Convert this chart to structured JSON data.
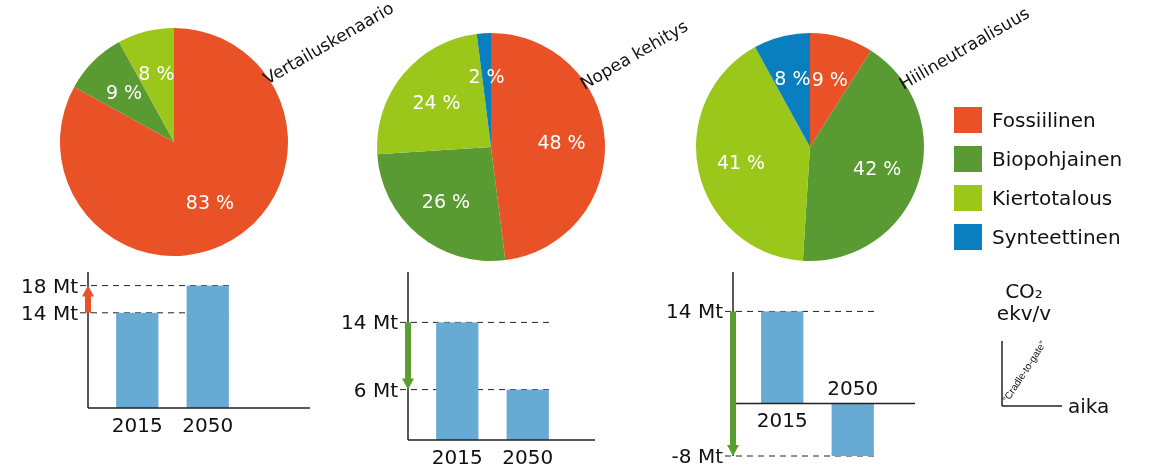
{
  "chart_data": [
    {
      "type": "pie",
      "title": "Vertailuskenaario",
      "categories": [
        null,
        null,
        null
      ],
      "values": [
        83,
        9,
        8
      ],
      "colors": [
        "#e95226",
        "#5a9a32",
        "#9bc61a"
      ],
      "value_labels": [
        "83 %",
        "9 %",
        "8 %"
      ]
    },
    {
      "type": "pie",
      "title": "Nopea kehitys",
      "categories": [
        null,
        null,
        null,
        null
      ],
      "values": [
        48,
        26,
        24,
        2
      ],
      "colors": [
        "#e95226",
        "#5a9a32",
        "#9bc61a",
        "#0a7fbf"
      ],
      "value_labels": [
        "48 %",
        "26 %",
        "24 %",
        "2 %"
      ]
    },
    {
      "type": "pie",
      "title": "Hiilineutraalisuus",
      "categories": [
        "Fossiilinen",
        "Biopohjainen",
        "Kiertotalous",
        "Synteettinen"
      ],
      "values": [
        9,
        42,
        41,
        8
      ],
      "colors": [
        "#e95226",
        "#5a9a32",
        "#9bc61a",
        "#0a7fbf"
      ],
      "value_labels": [
        "9 %",
        "42 %",
        "41 %",
        "8 %"
      ],
      "legend": "right"
    },
    {
      "type": "bar",
      "categories": [
        "2015",
        "2050"
      ],
      "values": [
        14,
        18
      ],
      "color": "#67aad4",
      "ylim": [
        0,
        20
      ],
      "yticks": [
        {
          "value": 14,
          "label": "14 Mt"
        },
        {
          "value": 18,
          "label": "18 Mt"
        }
      ],
      "grid": "y"
    },
    {
      "type": "bar",
      "categories": [
        "2015",
        "2050"
      ],
      "values": [
        14,
        6
      ],
      "color": "#67aad4",
      "ylim": [
        0,
        20
      ],
      "yticks": [
        {
          "value": 6,
          "label": "6 Mt"
        },
        {
          "value": 14,
          "label": "14 Mt"
        }
      ],
      "grid": "y"
    },
    {
      "type": "bar",
      "categories": [
        "2015",
        "2050"
      ],
      "values": [
        14,
        -8
      ],
      "color": "#67aad4",
      "ylim": [
        -8,
        20
      ],
      "yticks": [
        {
          "value": -8,
          "label": "-8 Mt"
        },
        {
          "value": 14,
          "label": "14 Mt"
        }
      ],
      "grid": "y"
    },
    {
      "type": "other",
      "ylabel": "CO₂ ekv/v",
      "xlabel": "aika",
      "annotations": [
        "”Cradle-to-gate”"
      ]
    }
  ]
}
